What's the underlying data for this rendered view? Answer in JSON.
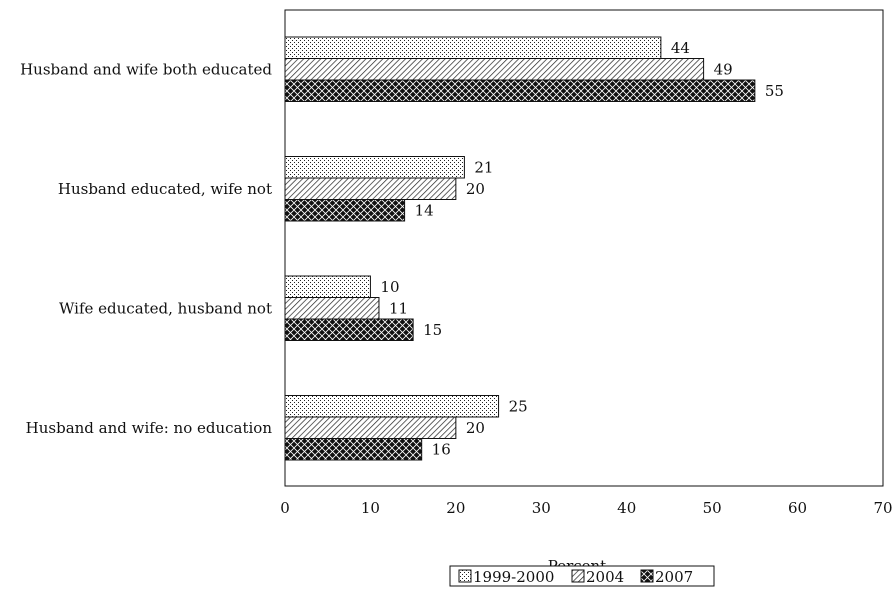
{
  "chart_data": {
    "type": "bar",
    "orientation": "horizontal",
    "categories": [
      "Husband and wife both educated",
      "Husband educated, wife not",
      "Wife educated, husband not",
      "Husband and wife: no education"
    ],
    "series": [
      {
        "name": "1999-2000",
        "values": [
          44,
          21,
          10,
          25
        ],
        "pattern": "dots"
      },
      {
        "name": "2004",
        "values": [
          49,
          20,
          11,
          20
        ],
        "pattern": "diagonal-hatch"
      },
      {
        "name": "2007",
        "values": [
          55,
          14,
          15,
          16
        ],
        "pattern": "dark-crosshatch"
      }
    ],
    "xlabel": "Percent",
    "ylabel": "",
    "xlim": [
      0,
      70
    ],
    "xticks": [
      "0",
      "10",
      "20",
      "30",
      "40",
      "50",
      "60",
      "70"
    ],
    "grid": false,
    "legend_position": "bottom-center"
  }
}
